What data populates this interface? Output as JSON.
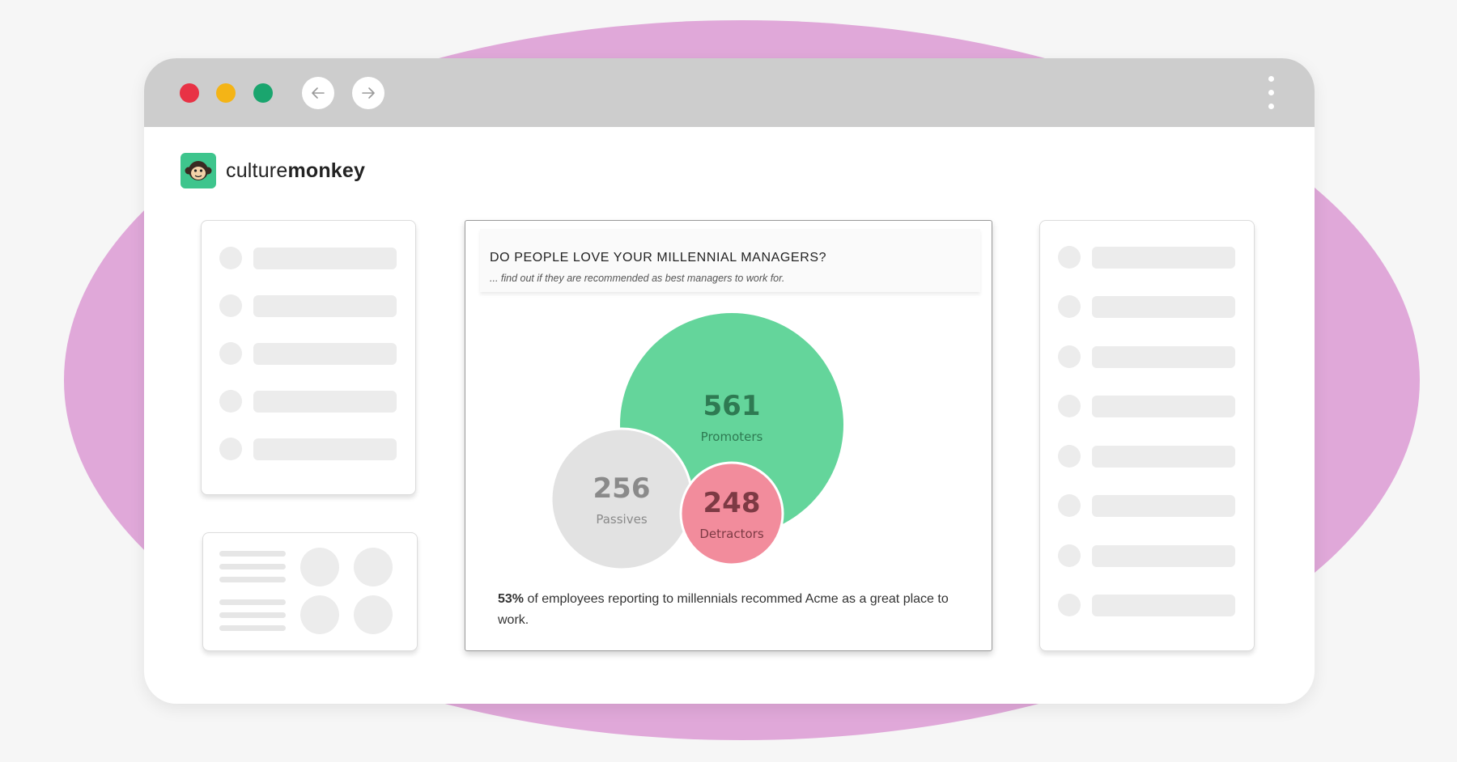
{
  "window": {
    "controls": [
      "close",
      "minimize",
      "maximize"
    ],
    "nav": {
      "back_icon": "arrow-left-icon",
      "forward_icon": "arrow-right-icon"
    },
    "menu_icon": "kebab-menu-icon"
  },
  "brand": {
    "name_light": "culture",
    "name_bold": "monkey",
    "icon": "monkey-icon"
  },
  "survey_card": {
    "title": "DO PEOPLE LOVE YOUR MILLENNIAL MANAGERS?",
    "subtitle": "... find out if they are recommended as best managers to work for.",
    "summary_pct": "53%",
    "summary_text": " of employees reporting to millennials recommed Acme as a great place to work."
  },
  "chart_data": {
    "type": "bubble",
    "series": [
      {
        "name": "Promoters",
        "value": 561,
        "color": "#64d59b",
        "text_color": "#2e7a52"
      },
      {
        "name": "Passives",
        "value": 256,
        "color": "#e2e2e2",
        "text_color": "#8a8a8a"
      },
      {
        "name": "Detractors",
        "value": 248,
        "color": "#f28c9c",
        "text_color": "#7d3a44"
      }
    ]
  },
  "colors": {
    "backdrop_blob": "#e0a8d9",
    "titlebar": "#cdcdcd",
    "close": "#e83245",
    "minimize": "#f4b416",
    "maximize": "#1aa56e",
    "brand": "#3ec58d"
  }
}
